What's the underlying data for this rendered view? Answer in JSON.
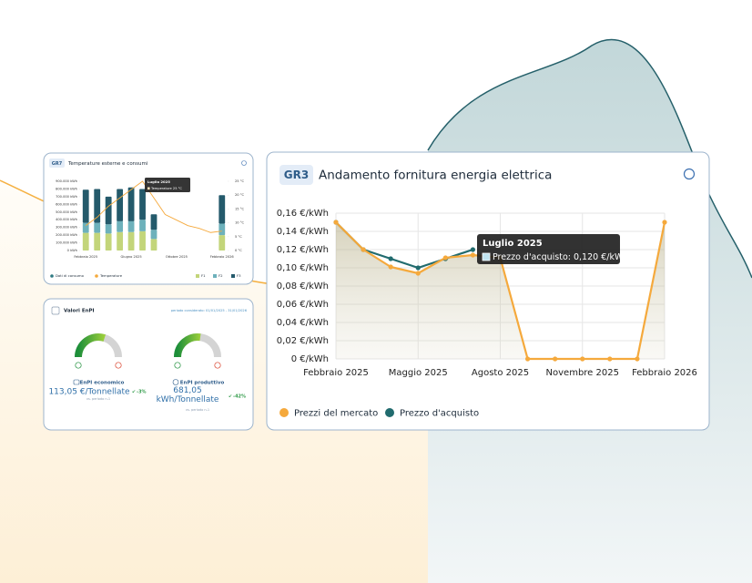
{
  "chart_data": [
    {
      "type": "bar",
      "tag": "GR7",
      "title": "Temperature esterne e consumi",
      "categories": [
        "Febbraio 2025",
        null,
        null,
        null,
        "Giugno 2025",
        null,
        null,
        null,
        "Ottobre 2025",
        null,
        null,
        null,
        "Febbraio 2026"
      ],
      "stacked": true,
      "group_label": "Dati di consumo",
      "series": [
        {
          "name": "F1",
          "color": "#c3d57a",
          "values": [
            230000,
            230000,
            220000,
            240000,
            240000,
            250000,
            150000,
            null,
            null,
            null,
            null,
            null,
            200000
          ]
        },
        {
          "name": "F2",
          "color": "#6db1bb",
          "values": [
            130000,
            130000,
            120000,
            140000,
            140000,
            150000,
            120000,
            null,
            null,
            null,
            null,
            null,
            150000
          ]
        },
        {
          "name": "F3",
          "color": "#245a6b",
          "values": [
            430000,
            440000,
            360000,
            420000,
            440000,
            400000,
            200000,
            null,
            null,
            null,
            null,
            null,
            370000
          ]
        },
        {
          "name": "Temperature",
          "type": "line",
          "axis": "y2",
          "color": "#f5a93c",
          "values": [
            9,
            12,
            16,
            19,
            22,
            25,
            19,
            13,
            11,
            9,
            8,
            6.5,
            7
          ]
        }
      ],
      "ylim": [
        0,
        900000
      ],
      "yticks": [
        {
          "value": 0,
          "label": "0 kWh"
        },
        {
          "value": 100000,
          "label": "100.000 kWh"
        },
        {
          "value": 200000,
          "label": "200.000 kWh"
        },
        {
          "value": 300000,
          "label": "300.000 kWh"
        },
        {
          "value": 400000,
          "label": "400.000 kWh"
        },
        {
          "value": 500000,
          "label": "500.000 kWh"
        },
        {
          "value": 600000,
          "label": "600.000 kWh"
        },
        {
          "value": 700000,
          "label": "700.000 kWh"
        },
        {
          "value": 800000,
          "label": "800.000 kWh"
        },
        {
          "value": 900000,
          "label": "900.000 kWh"
        }
      ],
      "y2lim": [
        0,
        25
      ],
      "y2ticks": [
        {
          "value": 0,
          "label": "0 °C"
        },
        {
          "value": 5,
          "label": "5 °C"
        },
        {
          "value": 10,
          "label": "10 °C"
        },
        {
          "value": 15,
          "label": "15 °C"
        },
        {
          "value": 20,
          "label": "20 °C"
        },
        {
          "value": 25,
          "label": "25 °C"
        }
      ],
      "tooltip": {
        "title": "Luglio 2025",
        "text": "Temperature 25 °C"
      }
    },
    {
      "type": "line",
      "tag": "GR3",
      "title": "Andamento fornitura energia elettrica",
      "categories": [
        "Febbraio 2025",
        null,
        null,
        "Maggio 2025",
        null,
        null,
        "Agosto 2025",
        null,
        null,
        "Novembre 2025",
        null,
        null,
        "Febbraio 2026"
      ],
      "series": [
        {
          "name": "Prezzi del mercato",
          "color": "#f5a93c",
          "values": [
            0.15,
            0.12,
            0.101,
            0.094,
            0.111,
            0.114,
            0.111,
            0,
            0,
            0,
            0,
            0,
            0.15
          ]
        },
        {
          "name": "Prezzo d'acquisto",
          "color": "#216b6e",
          "values": [
            0.15,
            0.12,
            0.11,
            0.1,
            0.11,
            0.12,
            null,
            null,
            null,
            null,
            null,
            null,
            null
          ]
        }
      ],
      "ylim": [
        0,
        0.16
      ],
      "yticks": [
        {
          "value": 0,
          "label": "0 €/kWh"
        },
        {
          "value": 0.02,
          "label": "0,02 €/kWh"
        },
        {
          "value": 0.04,
          "label": "0,04 €/kWh"
        },
        {
          "value": 0.06,
          "label": "0,06 €/kWh"
        },
        {
          "value": 0.08,
          "label": "0,08 €/kWh"
        },
        {
          "value": 0.1,
          "label": "0,10 €/kWh"
        },
        {
          "value": 0.12,
          "label": "0,12 €/kWh"
        },
        {
          "value": 0.14,
          "label": "0,14 €/kWh"
        },
        {
          "value": 0.16,
          "label": "0,16 €/kWh"
        }
      ],
      "grid": true,
      "tooltip": {
        "title": "Luglio 2025",
        "text": "Prezzo d'acquisto: 0,120 €/kWh"
      }
    }
  ],
  "enpi": {
    "title": "Valori EnPI",
    "period": "periodo considerato: 01/01/2025 - 31/01/2026",
    "items": [
      {
        "label": "EnPI economico",
        "value": "113,05 €/Tonnellate",
        "change": "-3%",
        "note": "vs. periodo n-1"
      },
      {
        "label": "EnPI produttivo",
        "value": "681,05 kWh/Tonnellate",
        "change": "-42%",
        "note": "vs. periodo n-1"
      }
    ]
  }
}
